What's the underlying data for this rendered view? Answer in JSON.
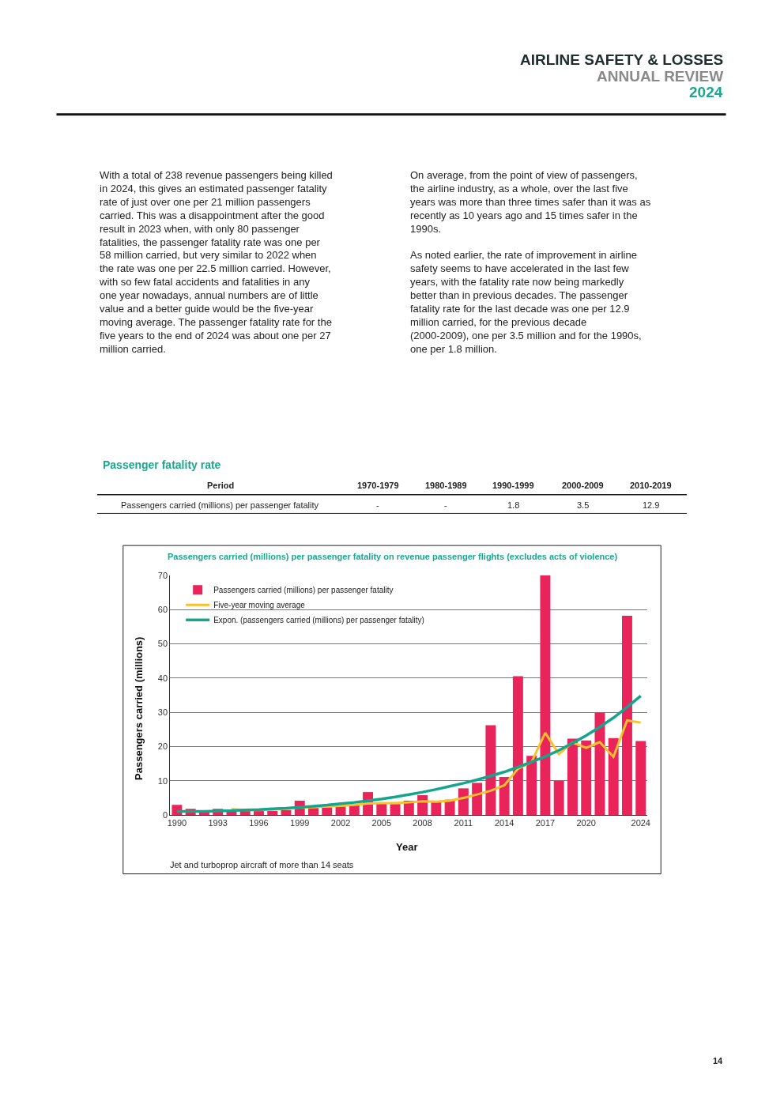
{
  "chart_data": [
    {
      "type": "other",
      "title": "AIRLINE SAFETY & LOSSES",
      "subtitle": "ANNUAL REVIEW",
      "annotations": [
        "2024",
        "With a total of 238 revenue passengers being killed in 2024, this gives an estimated passenger fatality rate of just over one per 21 million passengers carried. This was a disappointment after the good result in 2023 when, with only 80 passenger fatalities, the passenger fatality rate was one per 58 million carried, but very similar to 2022 when the rate was one per 22.5 million carried. However, with so few fatal accidents and fatalities in any one year nowadays, annual numbers are of little value and a better guide would be the five-year moving average. The passenger fatality rate for the five years to the end of 2024 was about one per 27 million carried.",
        "On average, from the point of view of passengers, the airline industry, as a whole, over the last five years was more than three times safer than it was as recently as 10 years ago and 15 times safer in the 1990s.",
        "As noted earlier, the rate of improvement in airline safety seems to have accelerated in the last few years, with the fatality rate now being markedly better than in previous decades. The passenger fatality rate for the last decade was one per 12.9 million carried, for the previous decade (2000-2009), one per 3.5 million and for the 1990s, one per 1.8 million.",
        "14"
      ]
    },
    {
      "type": "other",
      "title": "Passenger fatality rate",
      "ylabel": "Period",
      "categories": [
        "1970-1979",
        "1980-1989",
        "1990-1999",
        "2000-2009",
        "2010-2019"
      ],
      "y_categories": [
        "Passengers carried (millions) per passenger fatality"
      ],
      "cell_labels": [
        [
          "-",
          "-",
          "1.8",
          "3.5",
          "12.9"
        ]
      ]
    },
    {
      "type": "bar",
      "title": "Passengers carried (millions) per passenger fatality on revenue passenger flights (excludes acts of violence)",
      "xlabel": "Year",
      "ylabel": "Passengers carried (millions)",
      "annotations": [
        "Jet and turboprop aircraft of more than 14 seats"
      ],
      "categories": [
        "1990",
        null,
        null,
        "1993",
        null,
        null,
        "1996",
        null,
        null,
        "1999",
        null,
        null,
        "2002",
        null,
        null,
        "2005",
        null,
        null,
        "2008",
        null,
        null,
        "2011",
        null,
        null,
        "2014",
        null,
        null,
        "2017",
        null,
        null,
        "2020",
        null,
        null,
        null,
        "2024"
      ],
      "series": [
        {
          "name": "Passengers carried (millions) per passenger fatality",
          "type": "bar",
          "color": "#e8245a",
          "values": [
            3.0,
            1.8,
            1.0,
            1.8,
            1.5,
            1.3,
            1.5,
            1.2,
            1.5,
            4.2,
            2.2,
            2.2,
            2.5,
            3.0,
            6.7,
            3.5,
            3.2,
            4.2,
            5.8,
            4.2,
            4.5,
            7.8,
            9.4,
            26.2,
            11.1,
            40.5,
            17.3,
            70,
            10.0,
            22.3,
            21.8,
            29.9,
            22.5,
            58.2,
            21.6
          ]
        },
        {
          "name": "Five-year moving average",
          "type": "line",
          "color": "#fbc02d",
          "values": [
            null,
            null,
            null,
            null,
            1.7,
            1.5,
            1.5,
            1.6,
            1.9,
            2.2,
            2.3,
            2.5,
            2.7,
            3.0,
            3.4,
            3.5,
            3.5,
            3.7,
            4.0,
            3.9,
            4.2,
            5.0,
            6.0,
            7.1,
            8.7,
            13.5,
            15.5,
            24.0,
            17.8,
            21.2,
            19.6,
            21.3,
            17.0,
            27.6,
            27.0
          ]
        },
        {
          "name": "Expon. (passengers carried (millions) per passenger fatality)",
          "type": "line",
          "color": "#13a68c",
          "values": [
            1.1,
            1.1,
            1.1,
            1.2,
            1.3,
            1.5,
            1.6,
            1.8,
            2.0,
            2.3,
            2.6,
            2.9,
            3.3,
            3.7,
            4.2,
            4.7,
            5.3,
            6.0,
            6.7,
            7.5,
            8.4,
            9.3,
            10.3,
            11.4,
            12.6,
            14.0,
            15.5,
            17.1,
            18.9,
            21.0,
            23.2,
            25.7,
            28.4,
            31.5,
            34.8
          ]
        }
      ],
      "ylim": [
        0,
        70
      ],
      "yticks": [
        0,
        10,
        20,
        30,
        40,
        50,
        60,
        70
      ],
      "grid": "y",
      "legend": "top left",
      "marker": "none"
    }
  ]
}
